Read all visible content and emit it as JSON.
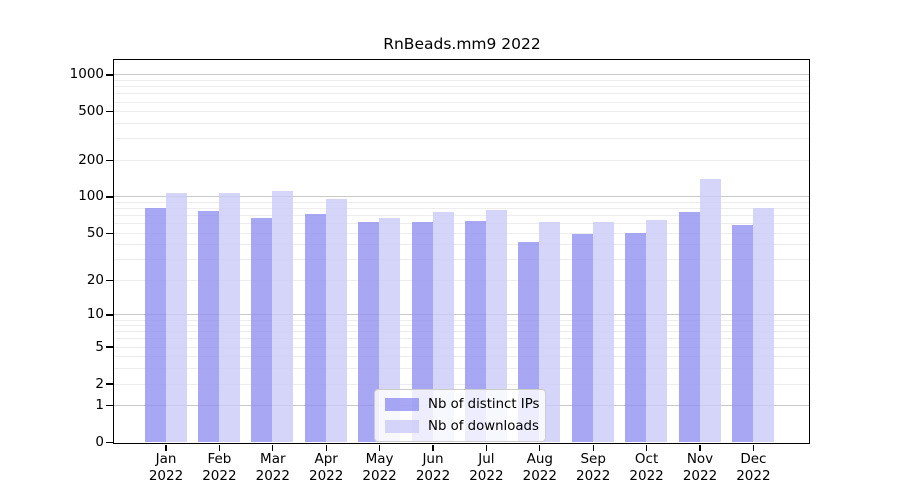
{
  "title": "RnBeads.mm9 2022",
  "colors": {
    "ips_bar": "rgba(138,138,240,0.75)",
    "downloads_bar": "rgba(203,203,248,0.8)",
    "major_gridline": "#c9c9c9",
    "minor_gridline": "#ededed",
    "axis": "#000000",
    "legend_border": "#cccccc"
  },
  "chart_data": {
    "type": "bar",
    "title": "RnBeads.mm9 2022",
    "scale": "log1p",
    "categories": [
      "Jan",
      "Feb",
      "Mar",
      "Apr",
      "May",
      "Jun",
      "Jul",
      "Aug",
      "Sep",
      "Oct",
      "Nov",
      "Dec"
    ],
    "category_year": "2022",
    "series": [
      {
        "name": "Nb of distinct IPs",
        "values": [
          80,
          76,
          66,
          71,
          62,
          61,
          63,
          42,
          49,
          50,
          75,
          58
        ]
      },
      {
        "name": "Nb of downloads",
        "values": [
          107,
          107,
          111,
          95,
          67,
          74,
          78,
          62,
          62,
          64,
          139,
          80
        ]
      }
    ],
    "y_ticks": [
      1000,
      500,
      200,
      100,
      50,
      20,
      10,
      5,
      2,
      1,
      0
    ],
    "ylim": [
      0,
      1300
    ],
    "grid": true,
    "legend_position": "bottom-center"
  }
}
